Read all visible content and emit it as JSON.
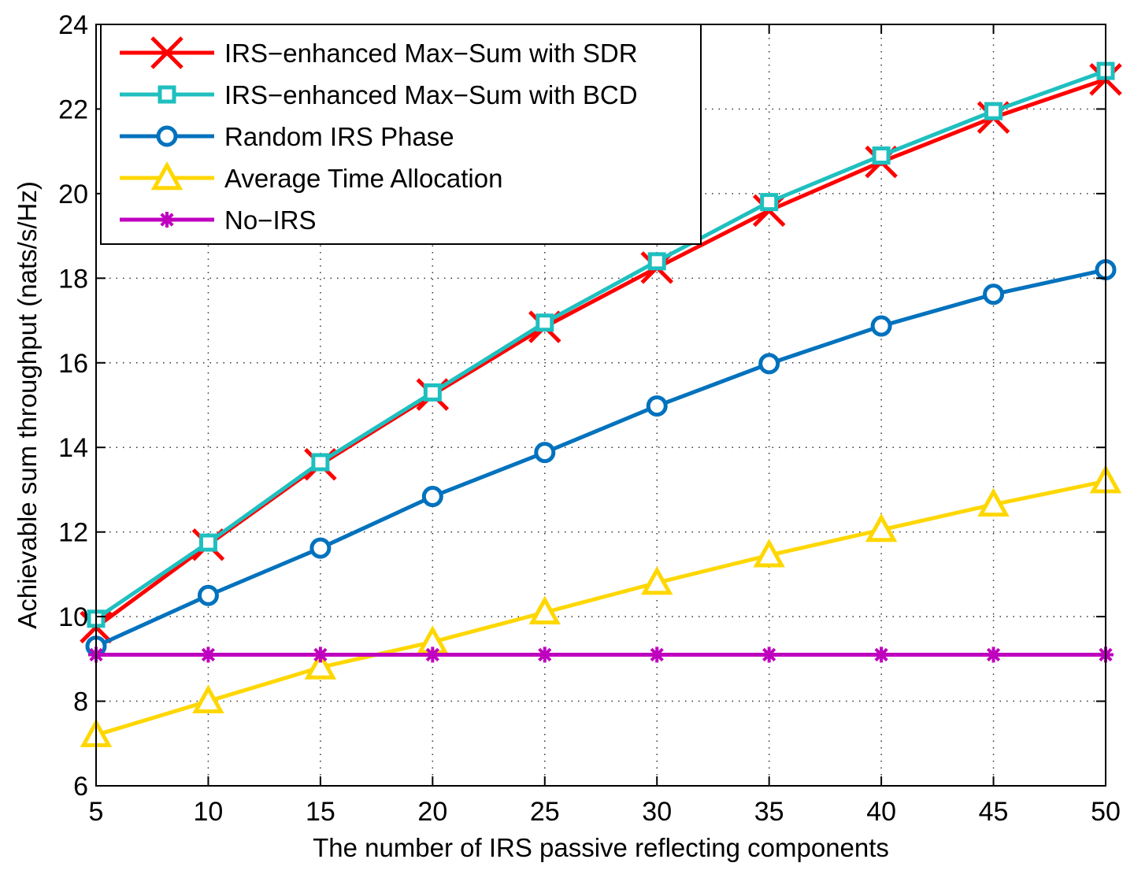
{
  "chart_data": {
    "type": "line",
    "title": "",
    "xlabel": "The number of IRS passive reflecting components",
    "ylabel": "Achievable sum throughput (nats/s/Hz)",
    "x": [
      5,
      10,
      15,
      20,
      25,
      30,
      35,
      40,
      45,
      50
    ],
    "xlim": [
      5,
      50
    ],
    "ylim": [
      6,
      24
    ],
    "xticks": [
      "5",
      "10",
      "15",
      "20",
      "25",
      "30",
      "35",
      "40",
      "45",
      "50"
    ],
    "yticks": [
      "6",
      "8",
      "10",
      "12",
      "14",
      "16",
      "18",
      "20",
      "22",
      "24"
    ],
    "grid": true,
    "legend_position": "top-left",
    "series": [
      {
        "name": "IRS−enhanced Max−Sum with SDR",
        "color": "#ff0000",
        "marker": "x",
        "values": [
          9.75,
          11.7,
          13.6,
          15.25,
          16.85,
          18.25,
          19.6,
          20.75,
          21.8,
          22.7
        ]
      },
      {
        "name": "IRS−enhanced Max−Sum with BCD",
        "color": "#1fbfbf",
        "marker": "square",
        "values": [
          9.95,
          11.75,
          13.65,
          15.3,
          16.95,
          18.4,
          19.8,
          20.9,
          21.95,
          22.9
        ]
      },
      {
        "name": "Random IRS Phase",
        "color": "#0072bd",
        "marker": "circle",
        "values": [
          9.3,
          10.5,
          11.62,
          12.84,
          13.88,
          14.98,
          15.98,
          16.87,
          17.62,
          18.2
        ]
      },
      {
        "name": "Average Time Allocation",
        "color": "#ffd700",
        "marker": "triangle",
        "values": [
          7.2,
          8.0,
          8.8,
          9.4,
          10.1,
          10.8,
          11.45,
          12.05,
          12.65,
          13.2
        ]
      },
      {
        "name": "No−IRS",
        "color": "#bf00bf",
        "marker": "asterisk",
        "values": [
          9.1,
          9.1,
          9.1,
          9.1,
          9.1,
          9.1,
          9.1,
          9.1,
          9.1,
          9.1
        ]
      }
    ]
  }
}
